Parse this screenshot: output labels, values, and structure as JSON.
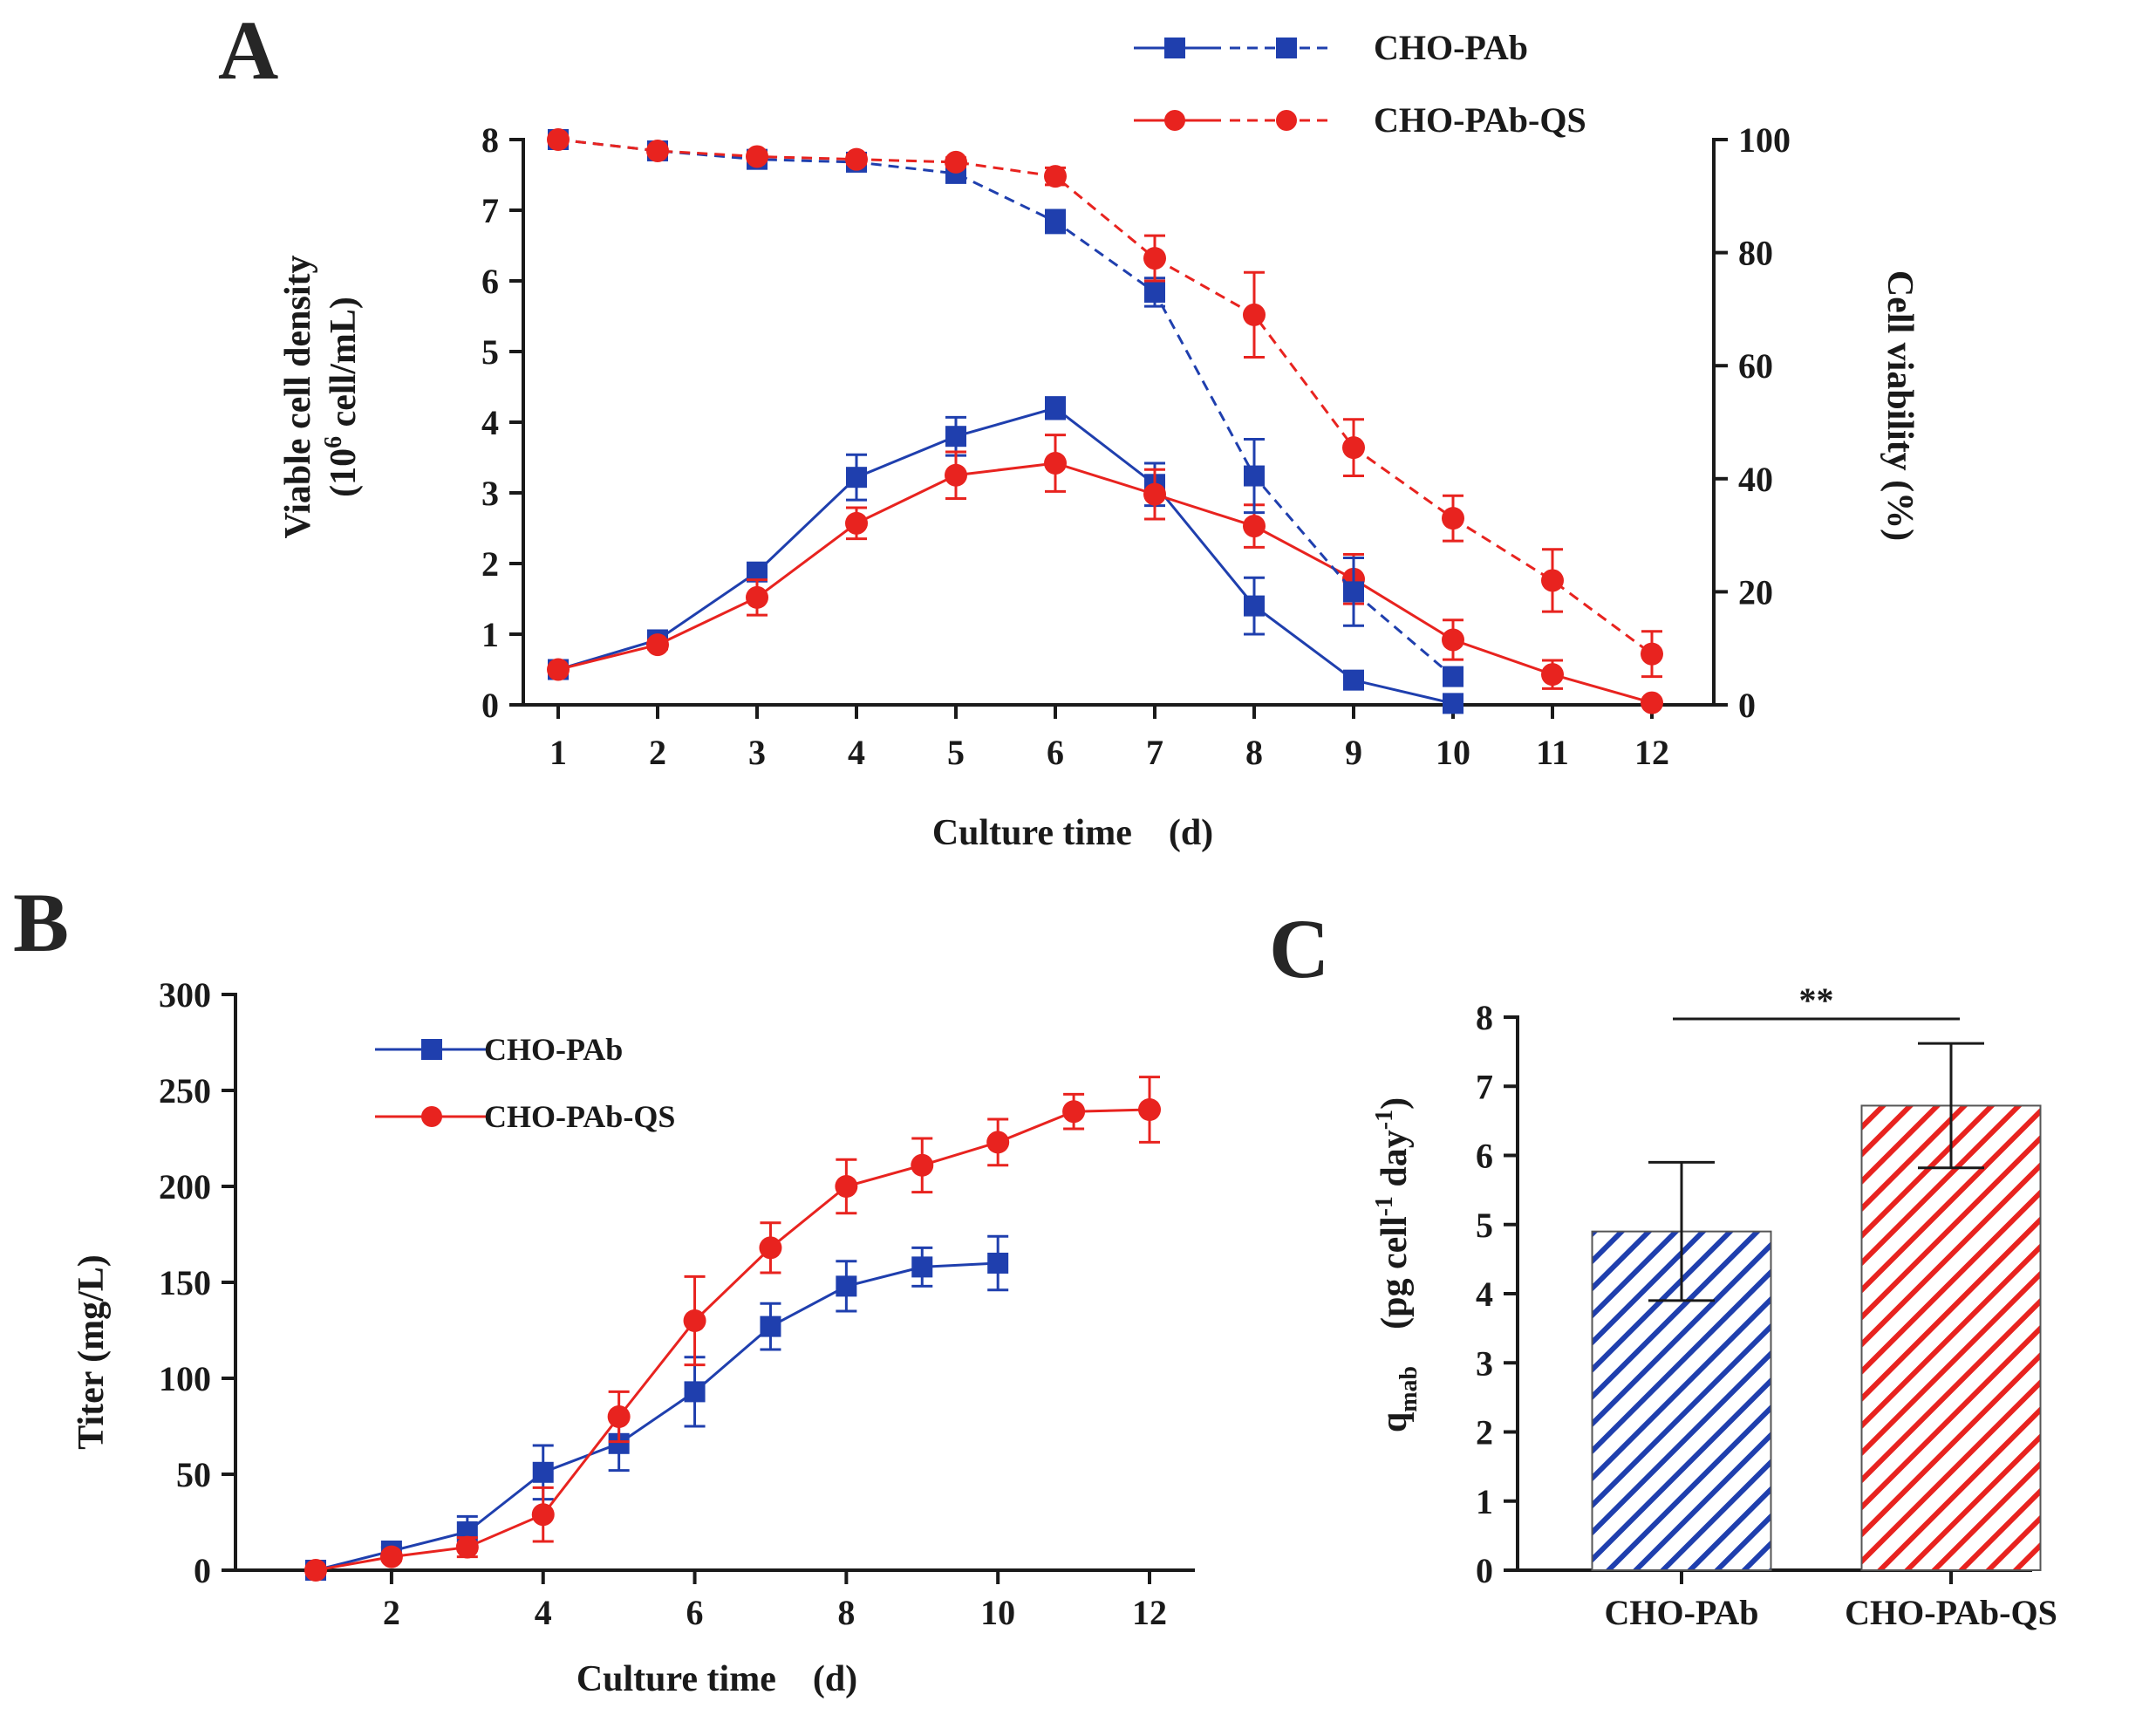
{
  "colors": {
    "blue": "#1f3fae",
    "red": "#e8231f",
    "axis": "#1a1a1a"
  },
  "chart_data": [
    {
      "panel": "A",
      "type": "line",
      "title": "",
      "xlabel": "Culture time　(d)",
      "ylabel_left_line1": "Viable cell density",
      "ylabel_left_line2_base": "(10",
      "ylabel_left_line2_sup": "6",
      "ylabel_left_line2_rest": " cell/mL)",
      "ylabel_right": "Cell viability (%)",
      "x_ticks": [
        "1",
        "2",
        "3",
        "4",
        "5",
        "6",
        "7",
        "8",
        "9",
        "10",
        "11",
        "12"
      ],
      "xlim": [
        0.5,
        12.5
      ],
      "ylim_left": [
        0,
        8
      ],
      "y_ticks_left": [
        "0",
        "1",
        "2",
        "3",
        "4",
        "5",
        "6",
        "7",
        "8"
      ],
      "ylim_right": [
        0,
        100
      ],
      "y_ticks_right": [
        "0",
        "20",
        "40",
        "60",
        "80",
        "100"
      ],
      "legend": [
        "CHO-PAb",
        "CHO-PAb-QS"
      ],
      "series": [
        {
          "name": "CHO-PAb",
          "measure": "viable cell density",
          "axis": "left",
          "style": "solid",
          "marker": "square",
          "x": [
            1,
            2,
            3,
            4,
            5,
            6,
            7,
            8,
            9,
            10
          ],
          "values": [
            0.5,
            0.92,
            1.88,
            3.22,
            3.8,
            4.2,
            3.12,
            1.4,
            0.35,
            0.02
          ],
          "errors": [
            0.03,
            0.05,
            0.1,
            0.32,
            0.27,
            0.15,
            0.3,
            0.4,
            0.05,
            0.02
          ]
        },
        {
          "name": "CHO-PAb-QS",
          "measure": "viable cell density",
          "axis": "left",
          "style": "solid",
          "marker": "circle",
          "x": [
            1,
            2,
            3,
            4,
            5,
            6,
            7,
            8,
            9,
            10,
            11,
            12
          ],
          "values": [
            0.5,
            0.85,
            1.52,
            2.57,
            3.25,
            3.42,
            2.98,
            2.53,
            1.78,
            0.92,
            0.43,
            0.03
          ],
          "errors": [
            0.03,
            0.06,
            0.25,
            0.22,
            0.33,
            0.4,
            0.35,
            0.3,
            0.35,
            0.28,
            0.2,
            0.03
          ]
        },
        {
          "name": "CHO-PAb",
          "measure": "cell viability",
          "axis": "right",
          "style": "dashed",
          "marker": "square",
          "x": [
            1,
            2,
            3,
            4,
            5,
            6,
            7,
            8,
            9,
            10
          ],
          "values": [
            100,
            98,
            96.5,
            96,
            94,
            85.5,
            73,
            40.5,
            20,
            5
          ],
          "errors": [
            0.5,
            0.6,
            0.8,
            0.8,
            1,
            2,
            2.5,
            6.5,
            6,
            1.5
          ]
        },
        {
          "name": "CHO-PAb-QS",
          "measure": "cell viability",
          "axis": "right",
          "style": "dashed",
          "marker": "circle",
          "x": [
            1,
            2,
            3,
            4,
            5,
            6,
            7,
            8,
            9,
            10,
            11,
            12
          ],
          "values": [
            100,
            98,
            97,
            96.5,
            96,
            93.5,
            79,
            69,
            45.5,
            33,
            22,
            9
          ],
          "errors": [
            0.5,
            0.6,
            0.7,
            0.8,
            0.8,
            1.5,
            4,
            7.5,
            5,
            4,
            5.5,
            4
          ]
        }
      ]
    },
    {
      "panel": "B",
      "type": "line",
      "title": "",
      "xlabel": "Culture time　(d)",
      "ylabel": "Titer (mg/L)",
      "x_ticks": [
        "2",
        "4",
        "6",
        "8",
        "10",
        "12"
      ],
      "xlim": [
        0.5,
        13
      ],
      "ylim": [
        0,
        300
      ],
      "y_ticks": [
        "0",
        "50",
        "100",
        "150",
        "200",
        "250",
        "300"
      ],
      "legend": [
        "CHO-PAb",
        "CHO-PAb-QS"
      ],
      "series": [
        {
          "name": "CHO-PAb",
          "marker": "square",
          "x": [
            1,
            2,
            3,
            4,
            5,
            6,
            7,
            8,
            9,
            10
          ],
          "values": [
            0,
            10,
            20,
            51,
            66,
            93,
            127,
            148,
            158,
            160
          ],
          "errors": [
            0,
            2,
            8,
            14,
            14,
            18,
            12,
            13,
            10,
            14
          ]
        },
        {
          "name": "CHO-PAb-QS",
          "marker": "circle",
          "x": [
            1,
            2,
            3,
            4,
            5,
            6,
            7,
            8,
            9,
            10,
            11,
            12
          ],
          "values": [
            0,
            7,
            12,
            29,
            80,
            130,
            168,
            200,
            211,
            223,
            239,
            240
          ],
          "errors": [
            0,
            2,
            5,
            14,
            13,
            23,
            13,
            14,
            14,
            12,
            9,
            17
          ]
        }
      ]
    },
    {
      "panel": "C",
      "type": "bar",
      "title": "",
      "xlabel": "",
      "ylabel_base": "q",
      "ylabel_sub": "mab",
      "ylabel_unit_a": "　(pg cell",
      "ylabel_unit_sup1": "-1",
      "ylabel_unit_b": " day",
      "ylabel_unit_sup2": "-1",
      "ylabel_unit_c": ")",
      "categories": [
        "CHO-PAb",
        "CHO-PAb-QS"
      ],
      "values": [
        4.9,
        6.72
      ],
      "errors": [
        1.0,
        0.9
      ],
      "ylim": [
        0,
        8
      ],
      "y_ticks": [
        "0",
        "1",
        "2",
        "3",
        "4",
        "5",
        "6",
        "7",
        "8"
      ],
      "significance": "**"
    }
  ]
}
